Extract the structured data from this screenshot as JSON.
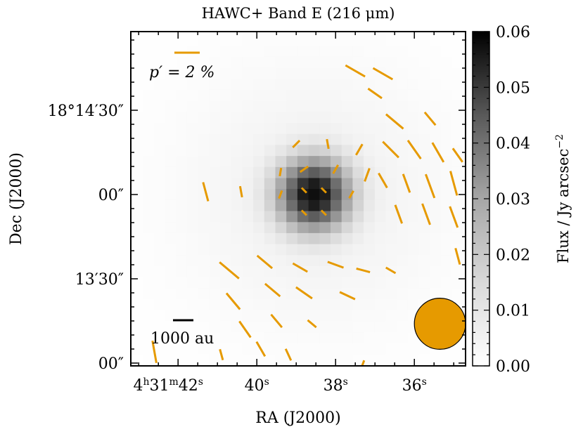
{
  "chart_data": {
    "type": "heatmap",
    "title": "HAWC+ Band E (216 μm)",
    "xlabel": "RA (J2000)",
    "ylabel": "Dec (J2000)",
    "colorbar": {
      "label": "Flux / Jy arcsec",
      "label_exponent": "−2",
      "min": 0.0,
      "max": 0.06,
      "ticks": [
        "0.00",
        "0.01",
        "0.02",
        "0.03",
        "0.04",
        "0.05",
        "0.06"
      ],
      "colormap": "Greys"
    },
    "x_ticks": [
      {
        "label": "4h31m42s",
        "ra_sec": 42.0
      },
      {
        "label": "40s",
        "ra_sec": 40.0
      },
      {
        "label": "38s",
        "ra_sec": 38.0
      },
      {
        "label": "36s",
        "ra_sec": 36.0
      }
    ],
    "y_ticks": [
      {
        "label": "18°14′30″",
        "dec_arcsec": 30
      },
      {
        "label": "00″",
        "dec_arcsec": 0
      },
      {
        "label": "13′30″",
        "dec_arcsec": -30
      },
      {
        "label": "00″",
        "dec_arcsec": -60
      }
    ],
    "ra_range_sec": [
      43.2,
      34.7
    ],
    "dec_range_arcsec": [
      -61,
      58
    ],
    "peak": {
      "ra_sec": 38.55,
      "dec_arcsec": 0,
      "flux": 0.06
    },
    "scale_bar_label": "1000 au",
    "polarization_legend": "p′ = 2 %",
    "beam": {
      "ra_sec": 35.35,
      "dec_arcsec": -46,
      "fwhm_arcsec": 18.2
    },
    "vector_color": "#E69A00",
    "polarization_vectors": [
      {
        "ra": 39.0,
        "dec": 18,
        "len": 3.5,
        "pa": 45
      },
      {
        "ra": 38.2,
        "dec": 18,
        "len": 3.5,
        "pa": -10
      },
      {
        "ra": 38.8,
        "dec": 9,
        "len": 3.5,
        "pa": 55
      },
      {
        "ra": 38.0,
        "dec": 9,
        "len": 3.5,
        "pa": 30
      },
      {
        "ra": 38.8,
        "dec": 1.5,
        "len": 2.5,
        "pa": -45
      },
      {
        "ra": 38.3,
        "dec": 1.5,
        "len": 2.5,
        "pa": -45
      },
      {
        "ra": 38.8,
        "dec": -6.5,
        "len": 2.5,
        "pa": -45
      },
      {
        "ra": 38.3,
        "dec": -6.5,
        "len": 2.5,
        "pa": -45
      },
      {
        "ra": 39.4,
        "dec": 8,
        "len": 3.0,
        "pa": 10
      },
      {
        "ra": 39.4,
        "dec": 0,
        "len": 3.0,
        "pa": 20
      },
      {
        "ra": 37.6,
        "dec": 0,
        "len": 3.0,
        "pa": 30
      },
      {
        "ra": 37.2,
        "dec": 7,
        "len": 5.0,
        "pa": 20
      },
      {
        "ra": 37.4,
        "dec": 16,
        "len": 4.5,
        "pa": 30
      },
      {
        "ra": 41.3,
        "dec": 1,
        "len": 7.0,
        "pa": -15
      },
      {
        "ra": 40.4,
        "dec": 1,
        "len": 4.0,
        "pa": -10
      },
      {
        "ra": 37.5,
        "dec": 44,
        "len": 8.0,
        "pa": -60
      },
      {
        "ra": 36.8,
        "dec": 43,
        "len": 8.0,
        "pa": -60
      },
      {
        "ra": 37.0,
        "dec": 36,
        "len": 6.0,
        "pa": -55
      },
      {
        "ra": 36.5,
        "dec": 26,
        "len": 8.0,
        "pa": -50
      },
      {
        "ra": 35.6,
        "dec": 27,
        "len": 6.0,
        "pa": -40
      },
      {
        "ra": 36.6,
        "dec": 16,
        "len": 8.0,
        "pa": -45
      },
      {
        "ra": 36.0,
        "dec": 16,
        "len": 8.0,
        "pa": -35
      },
      {
        "ra": 35.4,
        "dec": 15,
        "len": 8.0,
        "pa": -30
      },
      {
        "ra": 34.9,
        "dec": 14,
        "len": 6.0,
        "pa": -35
      },
      {
        "ra": 36.8,
        "dec": 5,
        "len": 6.0,
        "pa": -30
      },
      {
        "ra": 36.2,
        "dec": 4,
        "len": 7.0,
        "pa": -20
      },
      {
        "ra": 35.6,
        "dec": 3,
        "len": 9.0,
        "pa": -20
      },
      {
        "ra": 35.0,
        "dec": 4,
        "len": 9.0,
        "pa": -15
      },
      {
        "ra": 36.4,
        "dec": -7,
        "len": 7.0,
        "pa": -20
      },
      {
        "ra": 35.7,
        "dec": -7,
        "len": 8.0,
        "pa": -20
      },
      {
        "ra": 35.0,
        "dec": -8,
        "len": 8.0,
        "pa": -20
      },
      {
        "ra": 34.9,
        "dec": -22,
        "len": 6.0,
        "pa": -15
      },
      {
        "ra": 40.7,
        "dec": -27,
        "len": 9.0,
        "pa": -50
      },
      {
        "ra": 39.8,
        "dec": -24,
        "len": 7.0,
        "pa": -50
      },
      {
        "ra": 38.9,
        "dec": -26,
        "len": 6.0,
        "pa": -60
      },
      {
        "ra": 38.0,
        "dec": -25,
        "len": 6.0,
        "pa": -70
      },
      {
        "ra": 37.3,
        "dec": -27,
        "len": 5.0,
        "pa": -75
      },
      {
        "ra": 36.6,
        "dec": -27,
        "len": 4.0,
        "pa": -60
      },
      {
        "ra": 40.6,
        "dec": -38,
        "len": 7.5,
        "pa": -40
      },
      {
        "ra": 39.6,
        "dec": -34,
        "len": 7.0,
        "pa": -50
      },
      {
        "ra": 38.8,
        "dec": -35,
        "len": 7.0,
        "pa": -55
      },
      {
        "ra": 37.7,
        "dec": -36,
        "len": 6.0,
        "pa": -65
      },
      {
        "ra": 40.3,
        "dec": -48,
        "len": 7.0,
        "pa": -35
      },
      {
        "ra": 39.5,
        "dec": -45,
        "len": 6.0,
        "pa": -40
      },
      {
        "ra": 38.6,
        "dec": -46,
        "len": 4.0,
        "pa": -50
      },
      {
        "ra": 39.9,
        "dec": -55,
        "len": 6.0,
        "pa": -30
      },
      {
        "ra": 39.2,
        "dec": -57,
        "len": 4.5,
        "pa": -25
      },
      {
        "ra": 40.9,
        "dec": -57,
        "len": 4.0,
        "pa": -15
      },
      {
        "ra": 42.6,
        "dec": -56,
        "len": 8.0,
        "pa": -10
      },
      {
        "ra": 37.3,
        "dec": -60,
        "len": 2.0,
        "pa": 20
      }
    ]
  }
}
